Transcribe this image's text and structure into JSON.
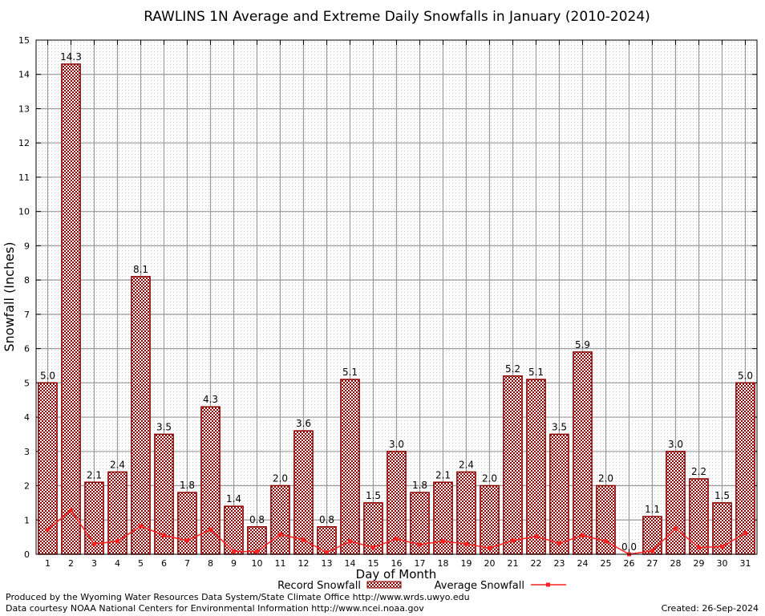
{
  "chart_data": {
    "type": "bar",
    "title": "RAWLINS 1N Average and Extreme Daily Snowfalls in January (2010-2024)",
    "xlabel": "Day of Month",
    "ylabel": "Snowfall (Inches)",
    "ylim": [
      0,
      15
    ],
    "yticks": [
      0,
      1,
      2,
      3,
      4,
      5,
      6,
      7,
      8,
      9,
      10,
      11,
      12,
      13,
      14,
      15
    ],
    "grid": true,
    "legend_position": "bottom-center",
    "categories": [
      "1",
      "2",
      "3",
      "4",
      "5",
      "6",
      "7",
      "8",
      "9",
      "10",
      "11",
      "12",
      "13",
      "14",
      "15",
      "16",
      "17",
      "18",
      "19",
      "20",
      "21",
      "22",
      "23",
      "24",
      "25",
      "26",
      "27",
      "28",
      "29",
      "30",
      "31"
    ],
    "series": [
      {
        "name": "Record Snowfall",
        "type": "bar",
        "color": "#8b0000",
        "values": [
          5.0,
          14.3,
          2.1,
          2.4,
          8.1,
          3.5,
          1.8,
          4.3,
          1.4,
          0.8,
          2.0,
          3.6,
          0.8,
          5.1,
          1.5,
          3.0,
          1.8,
          2.1,
          2.4,
          2.0,
          5.2,
          5.1,
          3.5,
          5.9,
          2.0,
          0.0,
          1.1,
          3.0,
          2.2,
          1.5,
          5.0
        ],
        "value_labels": [
          "5.0",
          "14.3",
          "2.1",
          "2.4",
          "8.1",
          "3.5",
          "1.8",
          "4.3",
          "1.4",
          "0.8",
          "2.0",
          "3.6",
          "0.8",
          "5.1",
          "1.5",
          "3.0",
          "1.8",
          "2.1",
          "2.4",
          "2.0",
          "5.2",
          "5.1",
          "3.5",
          "5.9",
          "2.0",
          "0.0",
          "1.1",
          "3.0",
          "2.2",
          "1.5",
          "5.0"
        ]
      },
      {
        "name": "Average Snowfall",
        "type": "line",
        "color": "#ff2020",
        "values": [
          0.72,
          1.28,
          0.3,
          0.38,
          0.82,
          0.55,
          0.4,
          0.72,
          0.08,
          0.08,
          0.58,
          0.42,
          0.05,
          0.38,
          0.2,
          0.45,
          0.28,
          0.38,
          0.3,
          0.18,
          0.4,
          0.52,
          0.32,
          0.55,
          0.38,
          0.0,
          0.1,
          0.75,
          0.2,
          0.22,
          0.62
        ]
      }
    ]
  },
  "footer": {
    "produced_by": "Produced by the Wyoming Water Resources Data System/State Climate Office http://www.wrds.uwyo.edu",
    "data_courtesy": "Data courtesy NOAA National Centers for Environmental Information http://www.ncei.noaa.gov",
    "created": "Created:  26-Sep-2024"
  }
}
